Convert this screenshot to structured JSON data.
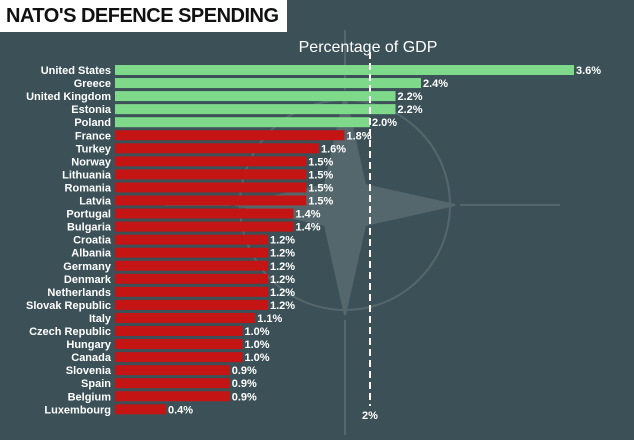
{
  "title": "NATO'S DEFENCE SPENDING",
  "chart_data": {
    "type": "bar",
    "orientation": "horizontal",
    "title": "NATO'S DEFENCE SPENDING",
    "xlabel": "Percentage of GDP",
    "ylabel": "",
    "xlim": [
      0,
      3.6
    ],
    "reference_line": {
      "value": 2.0,
      "label": "2%"
    },
    "value_suffix": "%",
    "colors": {
      "above_target": "#7fd98a",
      "below_target": "#c41414",
      "reference": "#ffffff"
    },
    "categories": [
      "United States",
      "Greece",
      "United Kingdom",
      "Estonia",
      "Poland",
      "France",
      "Turkey",
      "Norway",
      "Lithuania",
      "Romania",
      "Latvia",
      "Portugal",
      "Bulgaria",
      "Croatia",
      "Albania",
      "Germany",
      "Denmark",
      "Netherlands",
      "Slovak Republic",
      "Italy",
      "Czech Republic",
      "Hungary",
      "Canada",
      "Slovenia",
      "Spain",
      "Belgium",
      "Luxembourg"
    ],
    "values": [
      3.6,
      2.4,
      2.2,
      2.2,
      2.0,
      1.8,
      1.6,
      1.5,
      1.5,
      1.5,
      1.5,
      1.4,
      1.4,
      1.2,
      1.2,
      1.2,
      1.2,
      1.2,
      1.2,
      1.1,
      1.0,
      1.0,
      1.0,
      0.9,
      0.9,
      0.9,
      0.4
    ]
  }
}
